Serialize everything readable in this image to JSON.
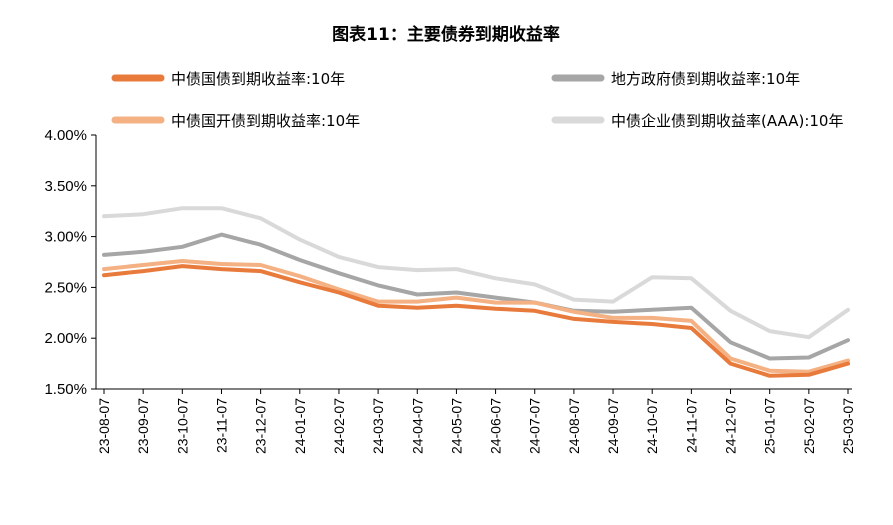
{
  "chart_data": {
    "type": "line",
    "title": "图表11：主要债券到期收益率",
    "xlabel": "",
    "ylabel": "",
    "ylim": [
      0.015,
      0.04
    ],
    "y_ticks": [
      "4.00%",
      "3.50%",
      "3.00%",
      "2.50%",
      "2.00%",
      "1.50%"
    ],
    "x_tick_labels": [
      "23-08-07",
      "23-09-07",
      "23-10-07",
      "23-11-07",
      "23-12-07",
      "24-01-07",
      "24-02-07",
      "24-03-07",
      "24-04-07",
      "24-05-07",
      "24-06-07",
      "24-07-07",
      "24-08-07",
      "24-09-07",
      "24-10-07",
      "24-11-07",
      "24-12-07",
      "25-01-07",
      "25-02-07",
      "25-03-07"
    ],
    "x": [
      "23-08-07",
      "23-09-07",
      "23-10-07",
      "23-11-07",
      "23-12-07",
      "24-01-07",
      "24-02-07",
      "24-03-07",
      "24-04-07",
      "24-05-07",
      "24-06-07",
      "24-07-07",
      "24-08-07",
      "24-09-07",
      "24-10-07",
      "24-11-07",
      "24-12-07",
      "25-01-07",
      "25-02-07",
      "25-03-07"
    ],
    "grid": false,
    "legend_position": "top",
    "series": [
      {
        "name": "中债国债到期收益率:10年",
        "color": "#E87B3C",
        "width": 4,
        "values": [
          0.0262,
          0.0266,
          0.0271,
          0.0268,
          0.0266,
          0.0255,
          0.0245,
          0.0232,
          0.023,
          0.0232,
          0.0229,
          0.0227,
          0.0219,
          0.0216,
          0.0214,
          0.021,
          0.0175,
          0.0163,
          0.0164,
          0.0175
        ]
      },
      {
        "name": "地方政府债到期收益率:10年",
        "color": "#A6A6A6",
        "width": 4,
        "values": [
          0.0282,
          0.0285,
          0.029,
          0.0302,
          0.0292,
          0.0277,
          0.0264,
          0.0252,
          0.0243,
          0.0245,
          0.024,
          0.0235,
          0.0227,
          0.0226,
          0.0228,
          0.023,
          0.0196,
          0.018,
          0.0181,
          0.0198
        ]
      },
      {
        "name": "中债国开债到期收益率:10年",
        "color": "#F4B183",
        "width": 4,
        "values": [
          0.0268,
          0.0272,
          0.0276,
          0.0273,
          0.0272,
          0.0261,
          0.0248,
          0.0236,
          0.0236,
          0.024,
          0.0235,
          0.0235,
          0.0226,
          0.022,
          0.022,
          0.0217,
          0.018,
          0.0168,
          0.0167,
          0.0178
        ]
      },
      {
        "name": "中债企业债到期收益率(AAA):10年",
        "color": "#D9D9D9",
        "width": 4,
        "values": [
          0.032,
          0.0322,
          0.0328,
          0.0328,
          0.0318,
          0.0297,
          0.028,
          0.027,
          0.0267,
          0.0268,
          0.0259,
          0.0253,
          0.0238,
          0.0236,
          0.026,
          0.0259,
          0.0227,
          0.0207,
          0.0201,
          0.0228
        ]
      }
    ]
  }
}
